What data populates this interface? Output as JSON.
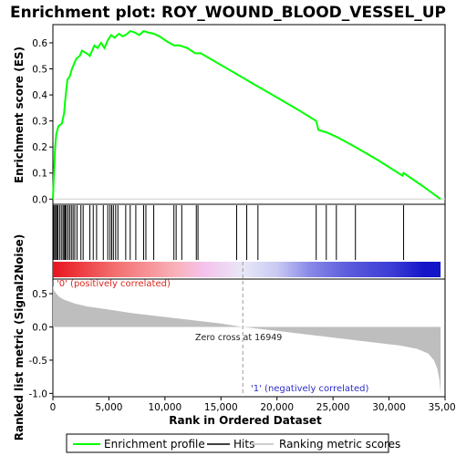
{
  "chart_data": [
    {
      "type": "line",
      "title": "Enrichment plot: ROY_WOUND_BLOOD_VESSEL_UP",
      "ylabel": "Enrichment score (ES)",
      "xlim": [
        0,
        35000
      ],
      "ylim": [
        -0.02,
        0.67
      ],
      "yticks": [
        "0.0",
        "0.1",
        "0.2",
        "0.3",
        "0.4",
        "0.5",
        "0.6"
      ],
      "series": [
        {
          "name": "Enrichment profile",
          "color": "#00ff00",
          "points": [
            [
              0,
              0.0
            ],
            [
              100,
              0.1
            ],
            [
              200,
              0.2
            ],
            [
              300,
              0.25
            ],
            [
              500,
              0.28
            ],
            [
              800,
              0.29
            ],
            [
              1000,
              0.33
            ],
            [
              1100,
              0.38
            ],
            [
              1200,
              0.42
            ],
            [
              1300,
              0.46
            ],
            [
              1500,
              0.47
            ],
            [
              1700,
              0.5
            ],
            [
              1900,
              0.52
            ],
            [
              2100,
              0.54
            ],
            [
              2400,
              0.55
            ],
            [
              2600,
              0.57
            ],
            [
              3000,
              0.56
            ],
            [
              3300,
              0.55
            ],
            [
              3500,
              0.57
            ],
            [
              3700,
              0.59
            ],
            [
              4000,
              0.58
            ],
            [
              4300,
              0.6
            ],
            [
              4600,
              0.58
            ],
            [
              4900,
              0.61
            ],
            [
              5200,
              0.63
            ],
            [
              5500,
              0.62
            ],
            [
              5900,
              0.635
            ],
            [
              6200,
              0.625
            ],
            [
              6500,
              0.63
            ],
            [
              6900,
              0.645
            ],
            [
              7300,
              0.64
            ],
            [
              7700,
              0.63
            ],
            [
              8100,
              0.645
            ],
            [
              8500,
              0.64
            ],
            [
              9000,
              0.635
            ],
            [
              9500,
              0.625
            ],
            [
              10200,
              0.605
            ],
            [
              10800,
              0.59
            ],
            [
              11300,
              0.59
            ],
            [
              12000,
              0.58
            ],
            [
              12700,
              0.56
            ],
            [
              13200,
              0.56
            ],
            [
              14000,
              0.54
            ],
            [
              16000,
              0.49
            ],
            [
              18000,
              0.44
            ],
            [
              20000,
              0.39
            ],
            [
              22000,
              0.34
            ],
            [
              23500,
              0.3
            ],
            [
              23700,
              0.265
            ],
            [
              24500,
              0.255
            ],
            [
              25500,
              0.235
            ],
            [
              27000,
              0.2
            ],
            [
              29000,
              0.15
            ],
            [
              31200,
              0.09
            ],
            [
              31300,
              0.1
            ],
            [
              33000,
              0.05
            ],
            [
              34600,
              0.0
            ]
          ]
        }
      ]
    },
    {
      "type": "barcode",
      "legend_label": "Hits",
      "hit_positions": [
        50,
        150,
        250,
        350,
        450,
        600,
        750,
        900,
        1000,
        1100,
        1200,
        1350,
        1500,
        1650,
        1800,
        1950,
        2150,
        2500,
        2700,
        3300,
        3600,
        3900,
        4500,
        4900,
        5100,
        5250,
        5400,
        5600,
        5800,
        6500,
        6900,
        7400,
        8100,
        8300,
        9000,
        10800,
        11000,
        11500,
        12800,
        12950,
        16400,
        17300,
        18300,
        23500,
        24400,
        25300,
        27000,
        31300
      ],
      "gradient_stops": [
        {
          "at": 0.0,
          "color": "#e8141e"
        },
        {
          "at": 0.15,
          "color": "#f26a6a"
        },
        {
          "at": 0.32,
          "color": "#f9b3bb"
        },
        {
          "at": 0.39,
          "color": "#f5c2ec"
        },
        {
          "at": 0.49,
          "color": "#e8e8f8"
        },
        {
          "at": 0.58,
          "color": "#c8c8f2"
        },
        {
          "at": 0.66,
          "color": "#8a8ae8"
        },
        {
          "at": 0.76,
          "color": "#5c5cdc"
        },
        {
          "at": 0.88,
          "color": "#3a3ad6"
        },
        {
          "at": 0.96,
          "color": "#1414c8"
        },
        {
          "at": 1.0,
          "color": "#1414c8"
        }
      ]
    },
    {
      "type": "area",
      "legend_label": "Ranking metric scores",
      "xlabel": "Rank in Ordered Dataset",
      "ylabel": "Ranked list metric (Signal2Noise)",
      "xlim": [
        0,
        35000
      ],
      "ylim": [
        -1.05,
        0.72
      ],
      "xticks": [
        "0",
        "5,000",
        "10,000",
        "15,000",
        "20,000",
        "25,000",
        "30,000",
        "35,000"
      ],
      "yticks": [
        "0.5",
        "0.0",
        "-0.5",
        "-1.0"
      ],
      "zero_cross": 16949,
      "zero_cross_label": "Zero cross at 16949",
      "positive_label": "'0' (positively correlated)",
      "negative_label": "'1' (negatively correlated)",
      "fill_color": "#bebebe",
      "series": [
        {
          "points": [
            [
              0,
              0.62
            ],
            [
              100,
              0.55
            ],
            [
              300,
              0.5
            ],
            [
              600,
              0.45
            ],
            [
              1000,
              0.41
            ],
            [
              2000,
              0.35
            ],
            [
              3000,
              0.31
            ],
            [
              5000,
              0.26
            ],
            [
              7000,
              0.21
            ],
            [
              9000,
              0.17
            ],
            [
              11000,
              0.13
            ],
            [
              13000,
              0.09
            ],
            [
              15000,
              0.05
            ],
            [
              16949,
              0.0
            ],
            [
              19000,
              -0.04
            ],
            [
              21000,
              -0.08
            ],
            [
              23000,
              -0.12
            ],
            [
              25000,
              -0.16
            ],
            [
              27000,
              -0.2
            ],
            [
              29000,
              -0.24
            ],
            [
              31000,
              -0.28
            ],
            [
              32500,
              -0.33
            ],
            [
              33500,
              -0.4
            ],
            [
              34000,
              -0.5
            ],
            [
              34300,
              -0.62
            ],
            [
              34500,
              -0.8
            ],
            [
              34600,
              -1.0
            ]
          ]
        }
      ]
    }
  ],
  "legend": {
    "items": [
      {
        "label": "Enrichment profile",
        "color": "#00ff00"
      },
      {
        "label": "Hits",
        "color": "#000000"
      },
      {
        "label": "Ranking metric scores",
        "color": "#bebebe"
      }
    ]
  }
}
